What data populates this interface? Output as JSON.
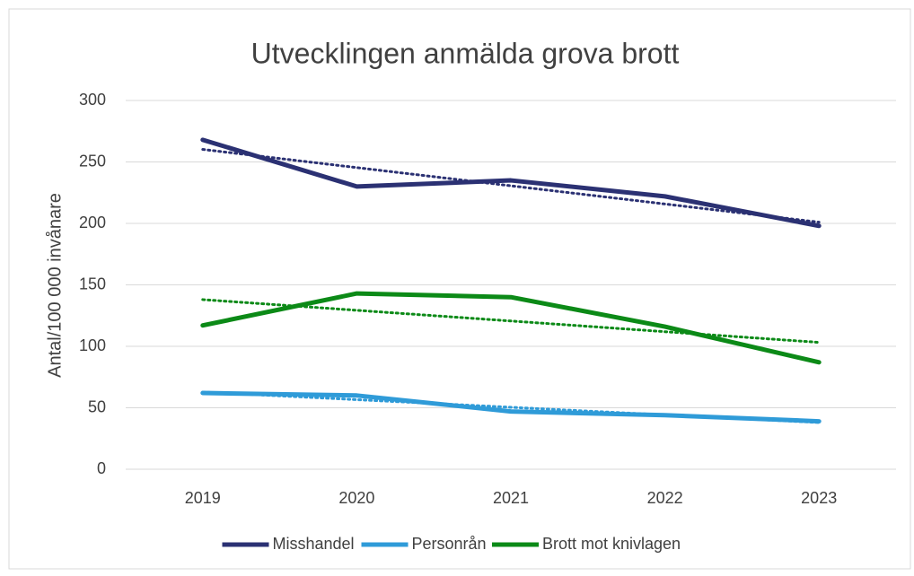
{
  "chart_data": {
    "type": "line",
    "title": "Utvecklingen anmälda grova brott",
    "y_label": "Antal/100 000 invånare",
    "categories": [
      "2019",
      "2020",
      "2021",
      "2022",
      "2023"
    ],
    "series": [
      {
        "name": "Misshandel",
        "color": "#2b3173",
        "values": [
          268,
          230,
          235,
          222,
          198
        ]
      },
      {
        "name": "Personrån",
        "color": "#2f9bd8",
        "values": [
          62,
          60,
          47,
          44,
          39
        ]
      },
      {
        "name": "Brott mot knivlagen",
        "color": "#0c8a17",
        "values": [
          117,
          143,
          140,
          116,
          87
        ]
      }
    ],
    "ylim": [
      0,
      300
    ],
    "yticks": [
      0,
      50,
      100,
      150,
      200,
      250,
      300
    ],
    "grid": true,
    "trendline": true,
    "legend": "bottom"
  }
}
